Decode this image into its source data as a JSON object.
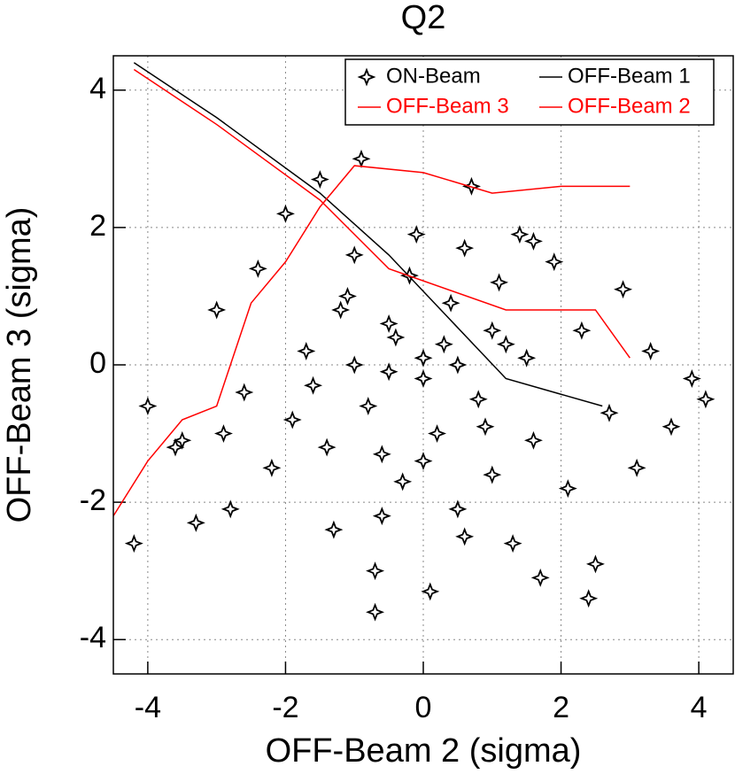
{
  "chart_data": {
    "type": "scatter",
    "title": "Q2",
    "x_label": "OFF-Beam 2 (sigma)",
    "y_label": "OFF-Beam 3 (sigma)",
    "xlim": [
      -4.5,
      4.5
    ],
    "ylim": [
      -4.5,
      4.5
    ],
    "xticks": [
      -4,
      -2,
      0,
      2,
      4
    ],
    "yticks": [
      -4,
      -2,
      0,
      2,
      4
    ],
    "grid": true,
    "series": [
      {
        "name": "ON-Beam",
        "color": "#000000",
        "style": "markers",
        "x": [
          -4.2,
          -3.6,
          -3.3,
          -3.0,
          -2.8,
          -2.6,
          -2.4,
          -2.2,
          -2.0,
          -1.9,
          -1.7,
          -1.5,
          -1.3,
          -1.1,
          -0.9,
          -0.7,
          -0.5,
          -0.3,
          -0.1,
          0.1,
          0.3,
          0.5,
          0.7,
          0.9,
          1.1,
          1.3,
          1.5,
          1.7,
          1.9,
          2.1,
          2.3,
          2.5,
          2.7,
          2.9,
          3.1,
          3.3,
          3.6,
          -1.6,
          -1.2,
          -0.8,
          -0.4,
          0,
          0.4,
          0.8,
          1.2,
          1.6,
          -1.4,
          -1.0,
          -0.6,
          -0.2,
          0.2,
          0.6,
          1.0,
          1.4,
          -1.0,
          -0.5,
          0,
          0.5,
          1.0,
          -0.6,
          0,
          0.6,
          -3.5,
          -4.0,
          -2.9,
          3.9,
          4.1,
          2.4,
          -0.7,
          1.6
        ],
        "y": [
          -2.6,
          -1.2,
          -2.3,
          0.8,
          -2.1,
          -0.4,
          1.4,
          -1.5,
          2.2,
          -0.8,
          0.2,
          2.7,
          -2.4,
          1.0,
          3.0,
          -3.0,
          0.6,
          -1.7,
          1.9,
          -3.3,
          0.3,
          -2.1,
          2.6,
          -0.9,
          1.2,
          -2.6,
          0.1,
          -3.1,
          1.5,
          -1.8,
          0.5,
          -2.9,
          -0.7,
          1.1,
          -1.5,
          0.2,
          -0.9,
          -0.3,
          0.8,
          -0.6,
          0.4,
          -0.2,
          0.9,
          -0.5,
          0.3,
          -1.1,
          -1.2,
          1.6,
          -1.3,
          1.3,
          -1.0,
          1.7,
          -1.6,
          1.9,
          0.0,
          -0.1,
          0.1,
          0.0,
          0.5,
          -2.2,
          -1.4,
          -2.5,
          -1.1,
          -0.6,
          -1.0,
          -0.2,
          -0.5,
          -3.4,
          -3.6,
          1.8
        ]
      },
      {
        "name": "OFF-Beam 1",
        "color": "#000000",
        "style": "line",
        "x": [
          -4.2,
          -3.0,
          -1.5,
          -0.5,
          1.2,
          2.6
        ],
        "y": [
          4.4,
          3.6,
          2.5,
          1.6,
          -0.2,
          -0.6
        ]
      },
      {
        "name": "OFF-Beam 3",
        "color": "#ff0000",
        "style": "line",
        "x": [
          -4.5,
          -4.0,
          -3.5,
          -3.0,
          -2.5,
          -2.0,
          -1.5,
          -1.0,
          0,
          1.0,
          2.0,
          3.0
        ],
        "y": [
          -2.2,
          -1.4,
          -0.8,
          -0.6,
          0.9,
          1.5,
          2.3,
          2.9,
          2.8,
          2.5,
          2.6,
          2.6
        ]
      },
      {
        "name": "OFF-Beam 2",
        "color": "#ff0000",
        "style": "line",
        "x": [
          -4.2,
          -3.0,
          -1.5,
          -0.5,
          1.2,
          2.5,
          3.0
        ],
        "y": [
          4.3,
          3.5,
          2.4,
          1.4,
          0.8,
          0.8,
          0.1
        ]
      }
    ]
  }
}
